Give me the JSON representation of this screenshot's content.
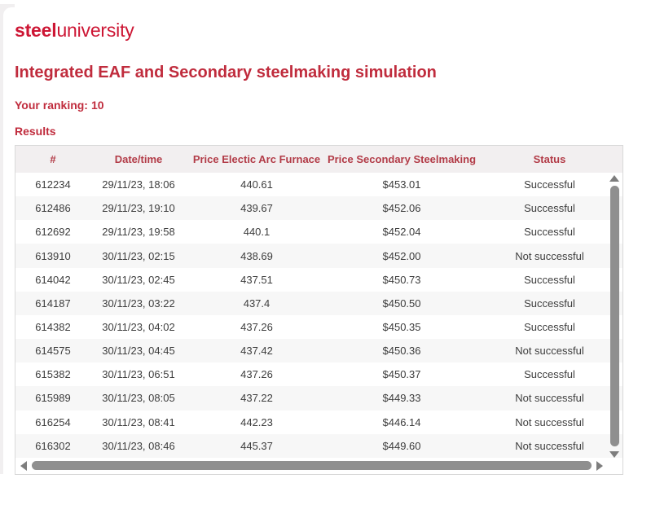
{
  "brand": {
    "logo_bold": "steel",
    "logo_regular": "university"
  },
  "page": {
    "title": "Integrated EAF and Secondary steelmaking simulation",
    "ranking_label": "Your ranking:",
    "ranking_value": "10",
    "results_label": "Results"
  },
  "table": {
    "columns": [
      "#",
      "Date/time",
      "Price Electic Arc Furnace",
      "Price Secondary Steelmaking",
      "Status"
    ],
    "rows": [
      {
        "id": "612234",
        "datetime": "29/11/23, 18:06",
        "price_eaf": "440.61",
        "price_secondary": "$453.01",
        "status": "Successful"
      },
      {
        "id": "612486",
        "datetime": "29/11/23, 19:10",
        "price_eaf": "439.67",
        "price_secondary": "$452.06",
        "status": "Successful"
      },
      {
        "id": "612692",
        "datetime": "29/11/23, 19:58",
        "price_eaf": "440.1",
        "price_secondary": "$452.04",
        "status": "Successful"
      },
      {
        "id": "613910",
        "datetime": "30/11/23, 02:15",
        "price_eaf": "438.69",
        "price_secondary": "$452.00",
        "status": "Not successful"
      },
      {
        "id": "614042",
        "datetime": "30/11/23, 02:45",
        "price_eaf": "437.51",
        "price_secondary": "$450.73",
        "status": "Successful"
      },
      {
        "id": "614187",
        "datetime": "30/11/23, 03:22",
        "price_eaf": "437.4",
        "price_secondary": "$450.50",
        "status": "Successful"
      },
      {
        "id": "614382",
        "datetime": "30/11/23, 04:02",
        "price_eaf": "437.26",
        "price_secondary": "$450.35",
        "status": "Successful"
      },
      {
        "id": "614575",
        "datetime": "30/11/23, 04:45",
        "price_eaf": "437.42",
        "price_secondary": "$450.36",
        "status": "Not successful"
      },
      {
        "id": "615382",
        "datetime": "30/11/23, 06:51",
        "price_eaf": "437.26",
        "price_secondary": "$450.37",
        "status": "Successful"
      },
      {
        "id": "615989",
        "datetime": "30/11/23, 08:05",
        "price_eaf": "437.22",
        "price_secondary": "$449.33",
        "status": "Not successful"
      },
      {
        "id": "616254",
        "datetime": "30/11/23, 08:41",
        "price_eaf": "442.23",
        "price_secondary": "$446.14",
        "status": "Not successful"
      },
      {
        "id": "616302",
        "datetime": "30/11/23, 08:46",
        "price_eaf": "445.37",
        "price_secondary": "$449.60",
        "status": "Not successful"
      }
    ]
  },
  "icons": {
    "scroll_up": "scroll-up-icon",
    "scroll_down": "scroll-down-icon",
    "scroll_left": "scroll-left-icon",
    "scroll_right": "scroll-right-icon"
  },
  "colors": {
    "brand_red": "#cd1634",
    "heading_red": "#c02c3d",
    "table_header_red": "#b23b47",
    "table_header_bg": "#f2eff0",
    "row_alt_bg": "#f7f7f7",
    "cell_text": "#3d3d3d",
    "table_border": "#d9d9d9",
    "scrollbar_thumb": "#8f8f8f",
    "scrollbar_arrow": "#7d7d7d"
  }
}
